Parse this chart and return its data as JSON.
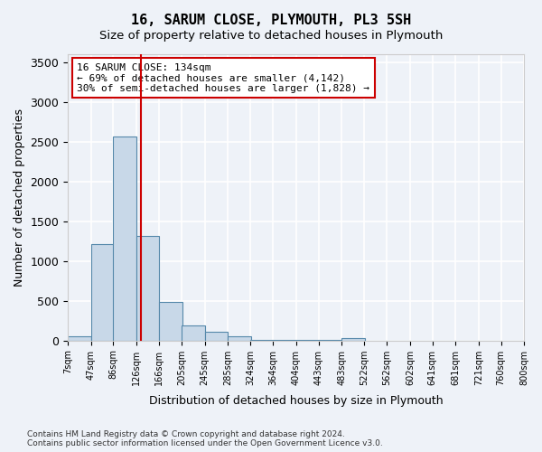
{
  "title": "16, SARUM CLOSE, PLYMOUTH, PL3 5SH",
  "subtitle": "Size of property relative to detached houses in Plymouth",
  "xlabel": "Distribution of detached houses by size in Plymouth",
  "ylabel": "Number of detached properties",
  "footer_line1": "Contains HM Land Registry data © Crown copyright and database right 2024.",
  "footer_line2": "Contains public sector information licensed under the Open Government Licence v3.0.",
  "annotation_line1": "16 SARUM CLOSE: 134sqm",
  "annotation_line2": "← 69% of detached houses are smaller (4,142)",
  "annotation_line3": "30% of semi-detached houses are larger (1,828) →",
  "bar_color": "#c8d8e8",
  "bar_edge_color": "#5588aa",
  "red_line_x": 134,
  "categories": [
    "7sqm",
    "47sqm",
    "86sqm",
    "126sqm",
    "166sqm",
    "205sqm",
    "245sqm",
    "285sqm",
    "324sqm",
    "364sqm",
    "404sqm",
    "443sqm",
    "483sqm",
    "522sqm",
    "562sqm",
    "602sqm",
    "641sqm",
    "681sqm",
    "721sqm",
    "760sqm",
    "800sqm"
  ],
  "bin_edges": [
    7,
    47,
    86,
    126,
    166,
    205,
    245,
    285,
    324,
    364,
    404,
    443,
    483,
    522,
    562,
    602,
    641,
    681,
    721,
    760,
    800
  ],
  "values": [
    55,
    1210,
    2560,
    1320,
    490,
    190,
    105,
    50,
    10,
    5,
    2,
    2,
    30,
    0,
    0,
    0,
    0,
    0,
    0,
    0
  ],
  "ylim": [
    0,
    3600
  ],
  "yticks": [
    0,
    500,
    1000,
    1500,
    2000,
    2500,
    3000,
    3500
  ],
  "background_color": "#eef2f8",
  "grid_color": "#ffffff",
  "annotation_box_color": "#ffffff",
  "annotation_box_edge_color": "#cc0000",
  "red_line_color": "#cc0000"
}
